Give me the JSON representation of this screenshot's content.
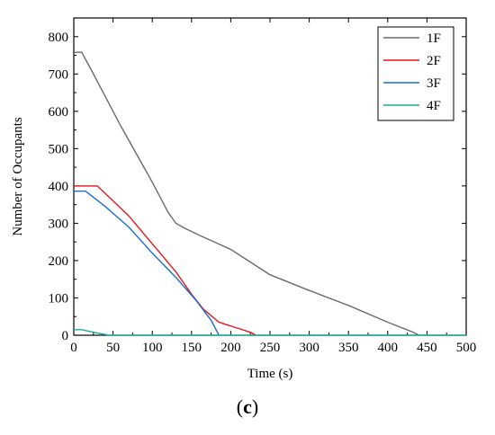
{
  "caption": {
    "open": "(",
    "letter": "c",
    "close": ")"
  },
  "chart_data": {
    "type": "line",
    "title": "",
    "xlabel": "Time (s)",
    "ylabel": "Number of Occupants",
    "xlim": [
      0,
      500
    ],
    "ylim": [
      0,
      850
    ],
    "xticks": [
      0,
      50,
      100,
      150,
      200,
      250,
      300,
      350,
      400,
      450,
      500
    ],
    "yticks": [
      0,
      100,
      200,
      300,
      400,
      500,
      600,
      700,
      800
    ],
    "grid": false,
    "legend_position": "top-right",
    "series": [
      {
        "name": "1F",
        "color": "#6b6b6b",
        "points": [
          [
            0,
            758
          ],
          [
            10,
            758
          ],
          [
            20,
            720
          ],
          [
            40,
            640
          ],
          [
            60,
            560
          ],
          [
            80,
            485
          ],
          [
            100,
            410
          ],
          [
            110,
            370
          ],
          [
            120,
            330
          ],
          [
            130,
            300
          ],
          [
            140,
            288
          ],
          [
            160,
            268
          ],
          [
            200,
            230
          ],
          [
            250,
            162
          ],
          [
            300,
            120
          ],
          [
            350,
            80
          ],
          [
            400,
            35
          ],
          [
            430,
            10
          ],
          [
            440,
            0
          ]
        ]
      },
      {
        "name": "2F",
        "color": "#e8141a",
        "points": [
          [
            0,
            400
          ],
          [
            30,
            400
          ],
          [
            50,
            360
          ],
          [
            70,
            320
          ],
          [
            90,
            270
          ],
          [
            110,
            220
          ],
          [
            130,
            170
          ],
          [
            150,
            110
          ],
          [
            165,
            70
          ],
          [
            185,
            35
          ],
          [
            210,
            18
          ],
          [
            225,
            8
          ],
          [
            232,
            0
          ]
        ]
      },
      {
        "name": "3F",
        "color": "#1a6fd0",
        "points": [
          [
            0,
            386
          ],
          [
            15,
            386
          ],
          [
            40,
            345
          ],
          [
            70,
            290
          ],
          [
            100,
            220
          ],
          [
            130,
            155
          ],
          [
            155,
            95
          ],
          [
            175,
            40
          ],
          [
            185,
            0
          ]
        ]
      },
      {
        "name": "4F",
        "color": "#1aaa9a",
        "points": [
          [
            0,
            15
          ],
          [
            10,
            15
          ],
          [
            25,
            8
          ],
          [
            45,
            0
          ],
          [
            500,
            0
          ]
        ]
      }
    ]
  }
}
